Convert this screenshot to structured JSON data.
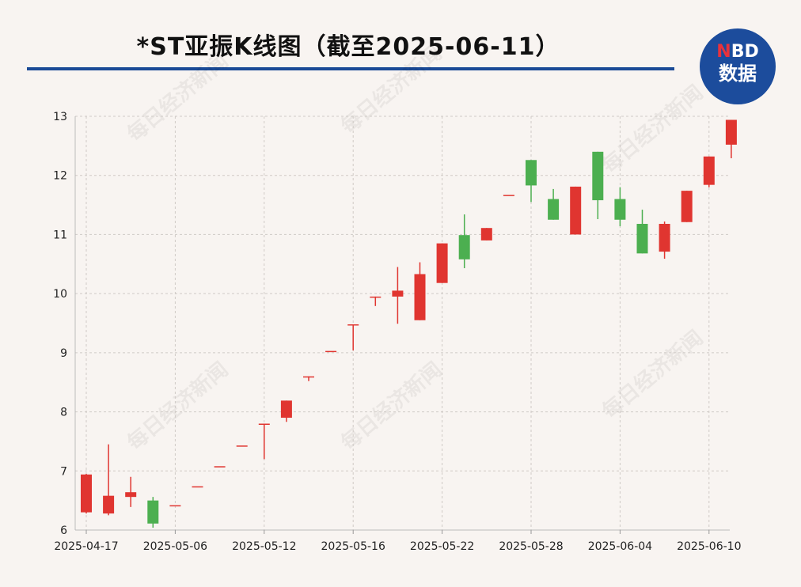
{
  "title": "*ST亚振K线图（截至2025-06-11）",
  "logo": {
    "top": "NBD",
    "bottom": "数据"
  },
  "watermark": "每日经济新闻",
  "colors": {
    "up": "#e03530",
    "down": "#4caf50",
    "accent": "#1a4a96",
    "background": "#f8f4f1"
  },
  "chart_data": {
    "type": "candlestick",
    "title": "*ST亚振K线图（截至2025-06-11）",
    "ylim": [
      6,
      13
    ],
    "yticks": [
      6,
      7,
      8,
      9,
      10,
      11,
      12,
      13
    ],
    "xticks": [
      "2025-04-17",
      "2025-05-06",
      "2025-05-12",
      "2025-05-16",
      "2025-05-22",
      "2025-05-28",
      "2025-06-04",
      "2025-06-10"
    ],
    "grid": true,
    "candles": [
      {
        "date": "2025-04-17",
        "open": 6.3,
        "high": 6.95,
        "low": 6.28,
        "close": 6.94
      },
      {
        "date": "",
        "open": 6.28,
        "high": 7.45,
        "low": 6.25,
        "close": 6.58
      },
      {
        "date": "",
        "open": 6.56,
        "high": 6.9,
        "low": 6.39,
        "close": 6.64
      },
      {
        "date": "",
        "open": 6.5,
        "high": 6.56,
        "low": 6.04,
        "close": 6.11
      },
      {
        "date": "2025-05-06",
        "open": 6.42,
        "high": 6.42,
        "low": 6.42,
        "close": 6.42
      },
      {
        "date": "2025-05-07",
        "open": 6.74,
        "high": 6.74,
        "low": 6.74,
        "close": 6.74
      },
      {
        "date": "2025-05-08",
        "open": 7.08,
        "high": 7.08,
        "low": 7.08,
        "close": 7.08
      },
      {
        "date": "2025-05-09",
        "open": 7.43,
        "high": 7.43,
        "low": 7.43,
        "close": 7.43
      },
      {
        "date": "2025-05-12",
        "open": 7.8,
        "high": 7.8,
        "low": 7.2,
        "close": 7.8
      },
      {
        "date": "2025-05-13",
        "open": 7.9,
        "high": 8.19,
        "low": 7.83,
        "close": 8.19
      },
      {
        "date": "2025-05-14",
        "open": 8.6,
        "high": 8.6,
        "low": 8.52,
        "close": 8.6
      },
      {
        "date": "2025-05-15",
        "open": 9.03,
        "high": 9.03,
        "low": 9.03,
        "close": 9.03
      },
      {
        "date": "2025-05-16",
        "open": 9.48,
        "high": 9.48,
        "low": 9.04,
        "close": 9.48
      },
      {
        "date": "2025-05-19",
        "open": 9.95,
        "high": 9.95,
        "low": 9.79,
        "close": 9.95
      },
      {
        "date": "2025-05-20",
        "open": 9.95,
        "high": 10.45,
        "low": 9.49,
        "close": 10.05
      },
      {
        "date": "2025-05-21",
        "open": 9.55,
        "high": 10.53,
        "low": 9.55,
        "close": 10.33
      },
      {
        "date": "2025-05-22",
        "open": 10.18,
        "high": 10.85,
        "low": 10.18,
        "close": 10.85
      },
      {
        "date": "2025-05-23",
        "open": 10.99,
        "high": 11.34,
        "low": 10.43,
        "close": 10.58
      },
      {
        "date": "2025-05-26",
        "open": 10.9,
        "high": 11.11,
        "low": 10.9,
        "close": 11.11
      },
      {
        "date": "2025-05-27",
        "open": 11.67,
        "high": 11.67,
        "low": 11.67,
        "close": 11.67
      },
      {
        "date": "2025-05-28",
        "open": 12.26,
        "high": 12.26,
        "low": 11.55,
        "close": 11.83
      },
      {
        "date": "2025-05-29",
        "open": 11.6,
        "high": 11.77,
        "low": 11.25,
        "close": 11.25
      },
      {
        "date": "2025-05-30",
        "open": 11.0,
        "high": 11.81,
        "low": 11.0,
        "close": 11.81
      },
      {
        "date": "2025-06-03",
        "open": 12.4,
        "high": 12.4,
        "low": 11.26,
        "close": 11.58
      },
      {
        "date": "2025-06-04",
        "open": 11.6,
        "high": 11.8,
        "low": 11.14,
        "close": 11.25
      },
      {
        "date": "2025-06-05",
        "open": 11.18,
        "high": 11.42,
        "low": 10.68,
        "close": 10.68
      },
      {
        "date": "2025-06-06",
        "open": 10.71,
        "high": 11.22,
        "low": 10.59,
        "close": 11.18
      },
      {
        "date": "2025-06-09",
        "open": 11.21,
        "high": 11.74,
        "low": 11.21,
        "close": 11.74
      },
      {
        "date": "2025-06-10",
        "open": 11.84,
        "high": 12.32,
        "low": 11.8,
        "close": 12.32
      },
      {
        "date": "2025-06-11",
        "open": 12.52,
        "high": 12.94,
        "low": 12.29,
        "close": 12.94
      }
    ]
  }
}
